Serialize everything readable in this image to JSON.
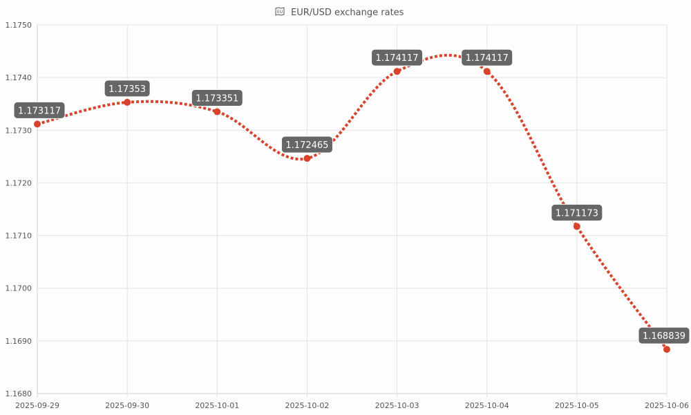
{
  "chart_data": {
    "type": "line",
    "title": "EUR/USD exchange rates",
    "title_icons": [
      "eu-flag-icon",
      "us-flag-icon"
    ],
    "x": [
      "2025-09-29",
      "2025-09-30",
      "2025-10-01",
      "2025-10-02",
      "2025-10-03",
      "2025-10-04",
      "2025-10-05",
      "2025-10-06"
    ],
    "series": [
      {
        "values": [
          1.173117,
          1.17353,
          1.173351,
          1.172465,
          1.174117,
          1.174117,
          1.171173,
          1.168839
        ],
        "labels": [
          "1.173117",
          "1.17353",
          "1.173351",
          "1.172465",
          "1.174117",
          "1.174117",
          "1.171173",
          "1.168839"
        ],
        "color": "#d9432b"
      }
    ],
    "ylim": [
      1.168,
      1.175
    ],
    "yticks": [
      "1.1680",
      "1.1690",
      "1.1700",
      "1.1710",
      "1.1720",
      "1.1730",
      "1.1740",
      "1.1750"
    ],
    "ytick_values": [
      1.168,
      1.169,
      1.17,
      1.171,
      1.172,
      1.173,
      1.174,
      1.175
    ],
    "grid": true,
    "legend": "none",
    "line_style": "dashed-smooth"
  }
}
